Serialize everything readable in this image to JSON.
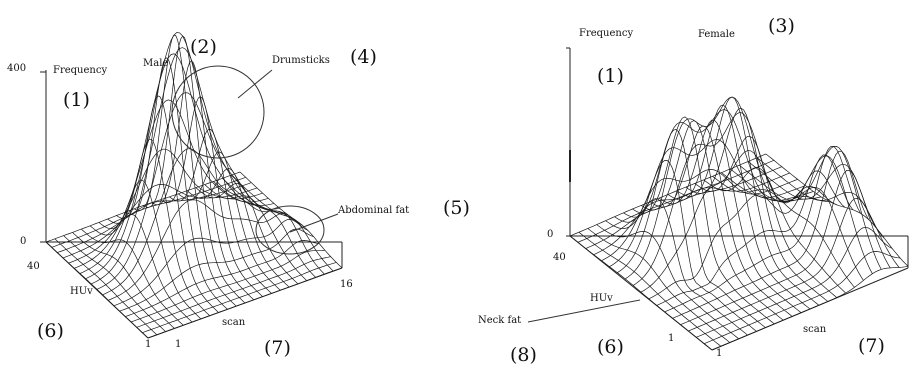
{
  "left_panel": {
    "frequency": "Frequency",
    "y_top": "400",
    "y_zero": "0",
    "title": "Male",
    "drumsticks": "Drumsticks",
    "abdominal": "Abdominal fat",
    "huv": "HUv",
    "huv_max": "40",
    "huv_min": "1",
    "scan": "scan",
    "scan_min": "1",
    "scan_max": "16",
    "n1": "(1)",
    "n2": "(2)",
    "n4": "(4)",
    "n5": "(5)",
    "n6": "(6)",
    "n7": "(7)"
  },
  "right_panel": {
    "frequency": "Frequency",
    "y_zero": "0",
    "title": "Female",
    "huv": "HUv",
    "huv_max": "40",
    "huv_min": "1",
    "scan": "scan",
    "scan_min": "1",
    "neck": "Neck fat",
    "n1": "(1)",
    "n3": "(3)",
    "n6": "(6)",
    "n7": "(7)",
    "n8": "(8)"
  }
}
